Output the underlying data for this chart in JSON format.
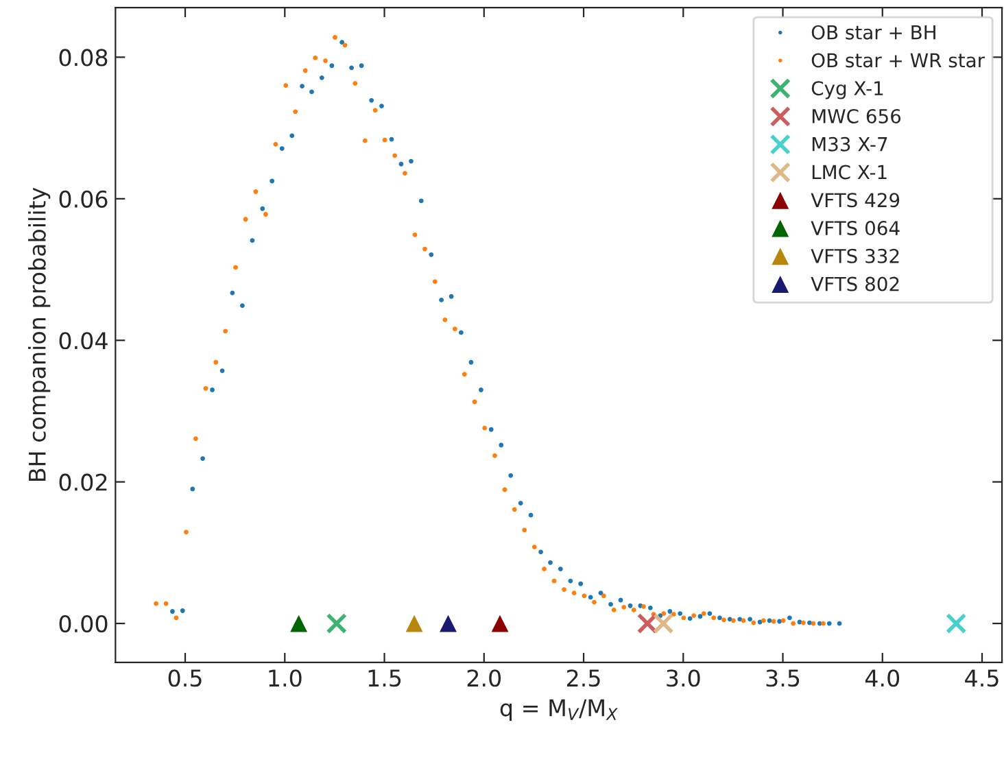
{
  "chart_data": {
    "type": "scatter",
    "xlabel": "q = M$_{V}$/M$_{X}$",
    "ylabel": "BH companion probability",
    "xlim": [
      0.15,
      4.6
    ],
    "ylim": [
      -0.0055,
      0.087
    ],
    "xticks": [
      {
        "value": 0.5,
        "label": "0.5"
      },
      {
        "value": 1.0,
        "label": "1.0"
      },
      {
        "value": 1.5,
        "label": "1.5"
      },
      {
        "value": 2.0,
        "label": "2.0"
      },
      {
        "value": 2.5,
        "label": "2.5"
      },
      {
        "value": 3.0,
        "label": "3.0"
      },
      {
        "value": 3.5,
        "label": "3.5"
      },
      {
        "value": 4.0,
        "label": "4.0"
      },
      {
        "value": 4.5,
        "label": "4.5"
      }
    ],
    "yticks": [
      {
        "value": 0.0,
        "label": "0.00"
      },
      {
        "value": 0.02,
        "label": "0.02"
      },
      {
        "value": 0.04,
        "label": "0.04"
      },
      {
        "value": 0.06,
        "label": "0.06"
      },
      {
        "value": 0.08,
        "label": "0.08"
      }
    ],
    "grid": false,
    "legend": "top right",
    "series": [
      {
        "name": "OB star + BH",
        "color": "#1f77b4",
        "marker": "circle",
        "x": [
          0.436,
          0.487,
          0.537,
          0.588,
          0.636,
          0.686,
          0.737,
          0.787,
          0.837,
          0.888,
          0.936,
          0.986,
          1.036,
          1.087,
          1.135,
          1.186,
          1.236,
          1.287,
          1.335,
          1.385,
          1.435,
          1.486,
          1.536,
          1.584,
          1.634,
          1.685,
          1.735,
          1.786,
          1.836,
          1.885,
          1.935,
          1.985,
          2.036,
          2.086,
          2.134,
          2.184,
          2.235,
          2.285,
          2.333,
          2.384,
          2.434,
          2.485,
          2.535,
          2.586,
          2.636,
          2.686,
          2.734,
          2.785,
          2.835,
          2.885,
          2.933,
          2.984,
          3.034,
          3.085,
          3.133,
          3.183,
          3.234,
          3.284,
          3.335,
          3.385,
          3.433,
          3.483,
          3.534,
          3.584,
          3.634,
          3.685,
          3.733,
          3.784
        ],
        "values": [
          0.0017,
          0.0018,
          0.019,
          0.0233,
          0.033,
          0.0357,
          0.0467,
          0.0449,
          0.0541,
          0.0586,
          0.0625,
          0.0671,
          0.0689,
          0.0759,
          0.0751,
          0.0771,
          0.0788,
          0.0821,
          0.0785,
          0.0788,
          0.0739,
          0.0731,
          0.0684,
          0.0649,
          0.0653,
          0.0597,
          0.0521,
          0.0457,
          0.0462,
          0.0411,
          0.0369,
          0.033,
          0.0274,
          0.0252,
          0.0209,
          0.017,
          0.0153,
          0.0101,
          0.0086,
          0.0077,
          0.006,
          0.0056,
          0.0037,
          0.0043,
          0.0027,
          0.0033,
          0.0025,
          0.0025,
          0.0022,
          0.0011,
          0.0017,
          0.0014,
          0.0007,
          0.001,
          0.0014,
          0.0008,
          0.0006,
          0.0006,
          0.0006,
          0.0002,
          0.0004,
          0.0003,
          0.0008,
          0.0002,
          0.0001,
          0.0,
          0.0,
          0.0
        ]
      },
      {
        "name": "OB star + WR star",
        "color": "#ff7f0e",
        "marker": "circle",
        "x": [
          0.354,
          0.404,
          0.455,
          0.505,
          0.553,
          0.603,
          0.654,
          0.702,
          0.753,
          0.803,
          0.854,
          0.904,
          0.954,
          1.005,
          1.053,
          1.103,
          1.153,
          1.204,
          1.252,
          1.302,
          1.353,
          1.403,
          1.454,
          1.502,
          1.552,
          1.603,
          1.653,
          1.703,
          1.754,
          1.804,
          1.854,
          1.902,
          1.953,
          2.003,
          2.054,
          2.104,
          2.153,
          2.203,
          2.253,
          2.302,
          2.352,
          2.402,
          2.452,
          2.503,
          2.553,
          2.601,
          2.652,
          2.702,
          2.752,
          2.801,
          2.851,
          2.902,
          2.952,
          3.002,
          3.053,
          3.103,
          3.153,
          3.204,
          3.252,
          3.302,
          3.353,
          3.403,
          3.454,
          3.502,
          3.552,
          3.603,
          3.653,
          3.703
        ],
        "values": [
          0.0028,
          0.0028,
          0.0008,
          0.0129,
          0.0261,
          0.0332,
          0.0369,
          0.0413,
          0.0503,
          0.0571,
          0.061,
          0.0578,
          0.0677,
          0.076,
          0.0723,
          0.0781,
          0.0799,
          0.0795,
          0.0828,
          0.0817,
          0.0763,
          0.0682,
          0.0725,
          0.0683,
          0.0661,
          0.0636,
          0.0549,
          0.0529,
          0.0483,
          0.0429,
          0.0416,
          0.0352,
          0.0313,
          0.0276,
          0.0237,
          0.0189,
          0.0161,
          0.0132,
          0.0108,
          0.0077,
          0.006,
          0.0048,
          0.0043,
          0.0039,
          0.003,
          0.0039,
          0.0019,
          0.0023,
          0.0019,
          0.0024,
          0.0013,
          0.0014,
          0.0013,
          0.0008,
          0.0011,
          0.0014,
          0.0008,
          0.0005,
          0.0004,
          0.0004,
          0.0001,
          0.0004,
          0.0003,
          0.0004,
          0.0,
          0.0001,
          0.0,
          0.0
        ]
      },
      {
        "name": "Cyg X-1",
        "color": "#3cb371",
        "marker": "cross",
        "x": [
          1.26
        ],
        "values": [
          0.0
        ]
      },
      {
        "name": "MWC 656",
        "color": "#cd5c5c",
        "marker": "cross",
        "x": [
          2.82
        ],
        "values": [
          0.0
        ]
      },
      {
        "name": "M33 X-7",
        "color": "#48d1cc",
        "marker": "cross",
        "x": [
          4.37
        ],
        "values": [
          0.0
        ]
      },
      {
        "name": "LMC X-1",
        "color": "#deb887",
        "marker": "cross",
        "x": [
          2.9
        ],
        "values": [
          0.0
        ]
      },
      {
        "name": "VFTS 429",
        "color": "#8b0000",
        "marker": "triangle",
        "x": [
          2.08
        ],
        "values": [
          0.0
        ]
      },
      {
        "name": "VFTS 064",
        "color": "#006400",
        "marker": "triangle",
        "x": [
          1.07
        ],
        "values": [
          0.0
        ]
      },
      {
        "name": "VFTS 332",
        "color": "#b8860b",
        "marker": "triangle",
        "x": [
          1.65
        ],
        "values": [
          0.0
        ]
      },
      {
        "name": "VFTS 802",
        "color": "#191970",
        "marker": "triangle",
        "x": [
          1.82
        ],
        "values": [
          0.0
        ]
      }
    ]
  }
}
